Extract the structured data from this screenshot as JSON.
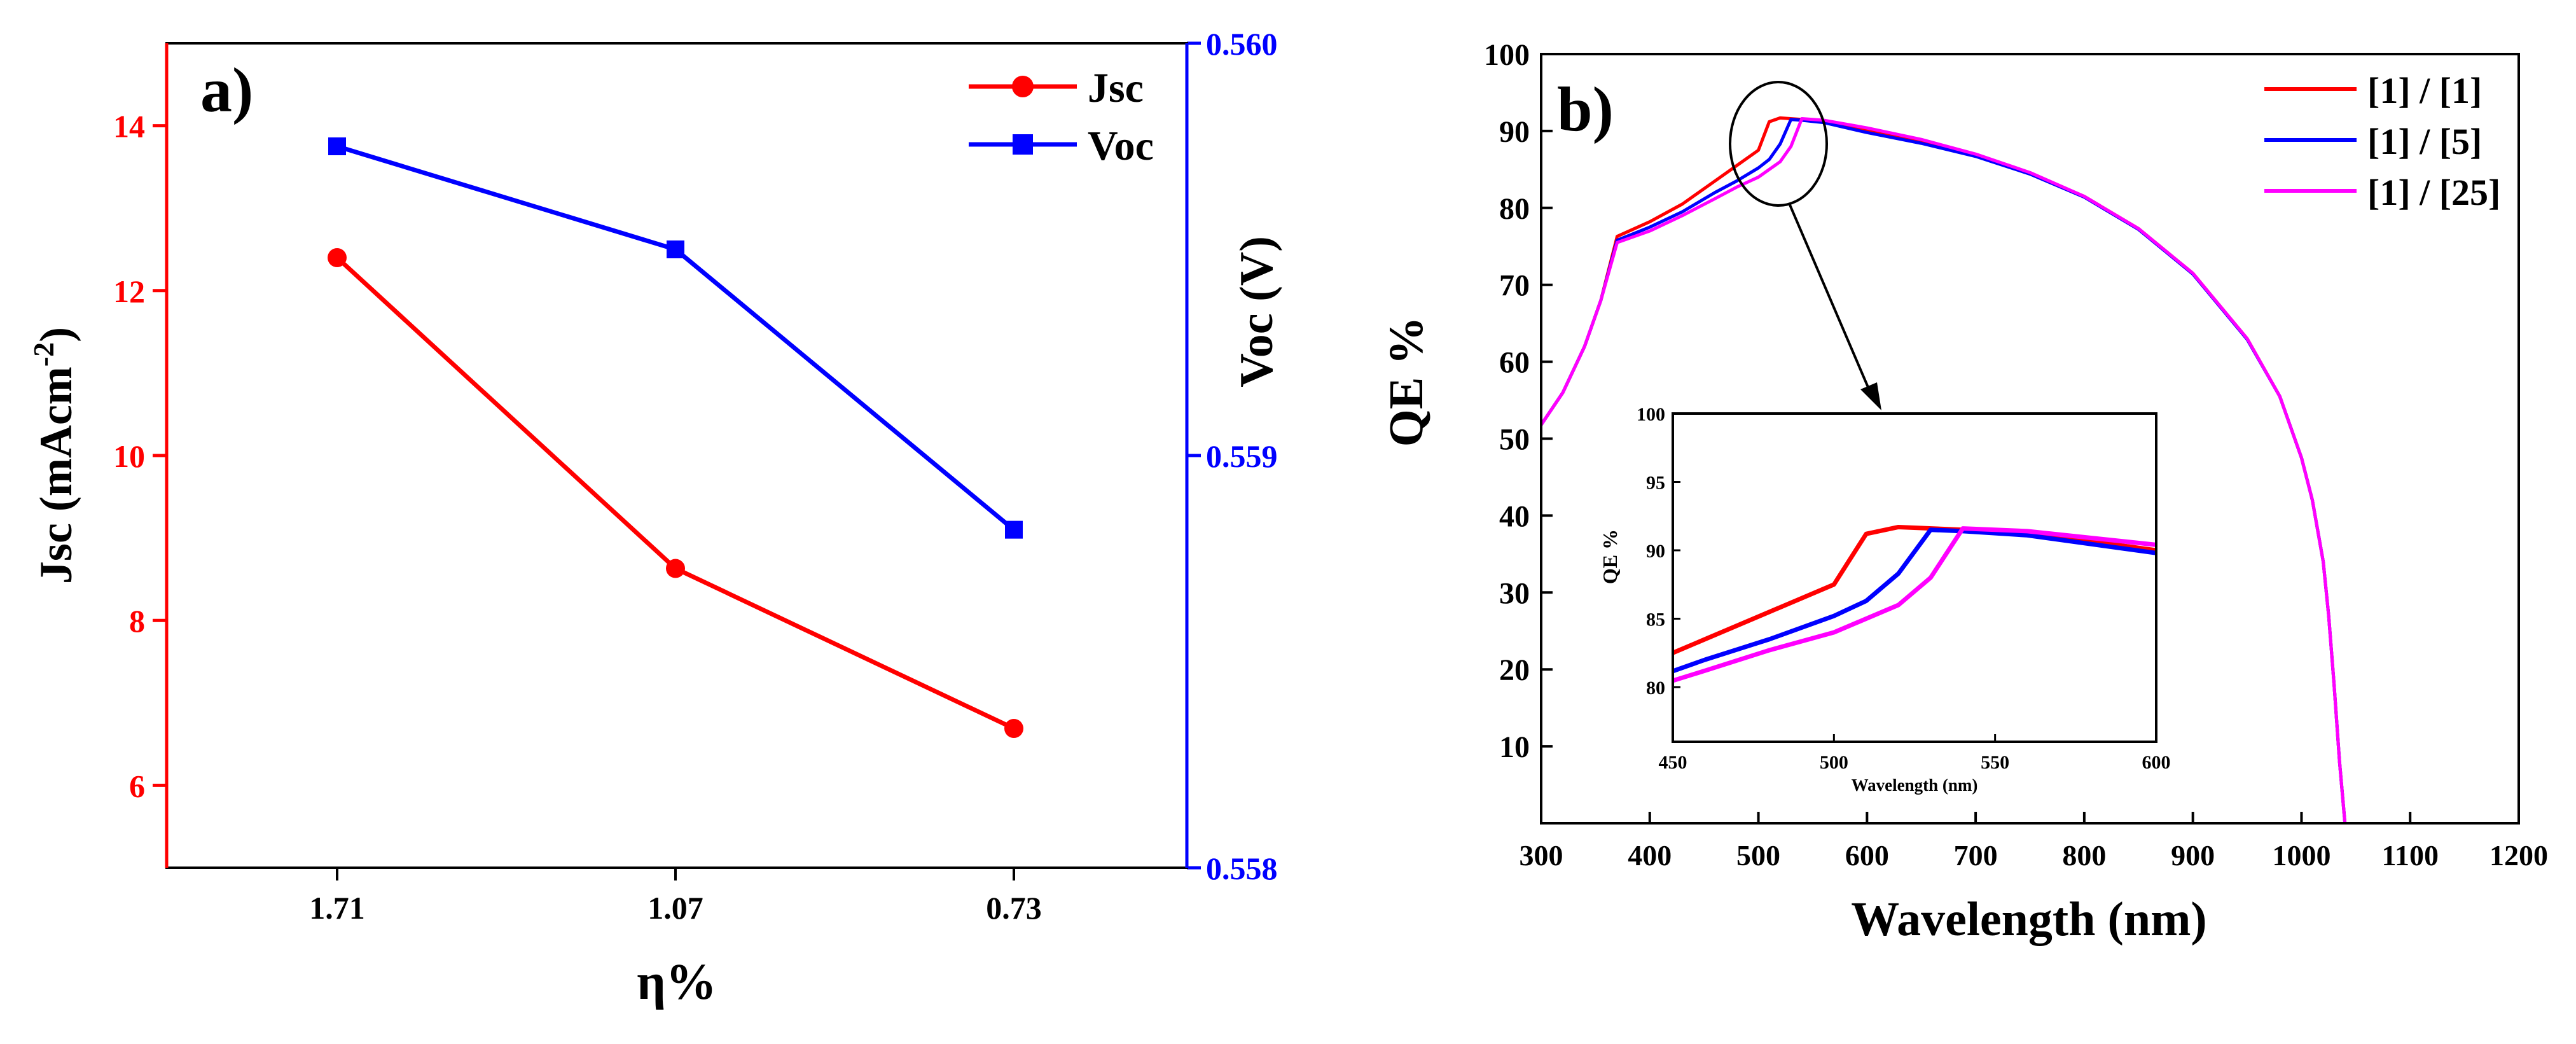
{
  "chart_data": [
    {
      "type": "line",
      "panel_label": "a)",
      "xlabel": "η%",
      "ylabel": "Jsc (mAcm",
      "ylabel_sup": "-2",
      "ylabel_end": ")",
      "y2label": "Voc (V)",
      "categories": [
        "1.71",
        "1.07",
        "0.73"
      ],
      "ylim": [
        5,
        15
      ],
      "yticks": [
        6,
        8,
        10,
        12,
        14
      ],
      "y2lim": [
        0.558,
        0.56
      ],
      "y2ticks": [
        "0.558",
        "0.559",
        "0.560"
      ],
      "legend_position": "top-right",
      "series": [
        {
          "name": "Jsc",
          "axis": "left",
          "color": "#ff0000",
          "marker": "circle",
          "values": [
            12.4,
            8.63,
            6.69
          ]
        },
        {
          "name": "Voc",
          "axis": "right",
          "color": "#0000ff",
          "marker": "square",
          "values": [
            0.55975,
            0.5595,
            0.55882
          ]
        }
      ]
    },
    {
      "type": "line",
      "panel_label": "b)",
      "xlabel": "Wavelength (nm)",
      "ylabel": "QE %",
      "xlim": [
        300,
        1200
      ],
      "xticks": [
        300,
        400,
        500,
        600,
        700,
        800,
        900,
        1000,
        1100,
        1200
      ],
      "ylim": [
        0,
        100
      ],
      "yticks": [
        10,
        20,
        30,
        40,
        50,
        60,
        70,
        80,
        90,
        100
      ],
      "legend_position": "top-right",
      "annotation": "circle around peak near 520 nm with arrow pointing to inset",
      "series": [
        {
          "name": "[1] / [1]",
          "color": "#ff0000",
          "x": [
            300,
            320,
            340,
            355,
            370,
            400,
            430,
            460,
            480,
            500,
            510,
            520,
            540,
            560,
            600,
            650,
            700,
            750,
            800,
            850,
            900,
            950,
            980,
            1000,
            1010,
            1020,
            1025,
            1030,
            1035,
            1040
          ],
          "y": [
            51.8,
            56,
            62,
            68,
            76.3,
            78.2,
            80.5,
            83.5,
            85.5,
            87.5,
            91.2,
            91.7,
            91.5,
            91.3,
            90,
            88.5,
            86.8,
            84.5,
            81.5,
            77.3,
            71.5,
            63,
            55.5,
            47.5,
            42,
            34,
            27,
            18,
            8,
            0
          ]
        },
        {
          "name": "[1] / [5]",
          "color": "#0000ff",
          "x": [
            300,
            320,
            340,
            355,
            370,
            400,
            430,
            460,
            480,
            500,
            510,
            520,
            530,
            540,
            560,
            600,
            650,
            700,
            750,
            800,
            850,
            900,
            950,
            980,
            1000,
            1010,
            1020,
            1025,
            1030,
            1035,
            1040
          ],
          "y": [
            51.8,
            56,
            62,
            68,
            75.8,
            77.5,
            79.5,
            82,
            83.5,
            85.2,
            86.3,
            88.3,
            91.5,
            91.4,
            91.1,
            89.8,
            88.4,
            86.7,
            84.4,
            81.4,
            77.2,
            71.4,
            62.9,
            55.5,
            47.5,
            42,
            34,
            27,
            18,
            8,
            0
          ]
        },
        {
          "name": "[1] / [25]",
          "color": "#ff00ff",
          "x": [
            300,
            320,
            340,
            355,
            370,
            400,
            430,
            460,
            480,
            500,
            510,
            520,
            530,
            540,
            560,
            600,
            650,
            700,
            750,
            800,
            850,
            900,
            950,
            980,
            1000,
            1010,
            1020,
            1025,
            1030,
            1035,
            1040
          ],
          "y": [
            51.8,
            56,
            62,
            68,
            75.5,
            77,
            79,
            81.2,
            82.7,
            84,
            85,
            86,
            88,
            91.6,
            91.4,
            90.4,
            88.9,
            87,
            84.6,
            81.5,
            77.3,
            71.5,
            63,
            55.5,
            47.5,
            42,
            34,
            27,
            18,
            8,
            0
          ]
        }
      ],
      "inset": {
        "xlabel": "Wavelength (nm)",
        "ylabel": "QE %",
        "xlim": [
          450,
          600
        ],
        "xticks": [
          450,
          500,
          550,
          600
        ],
        "ylim": [
          76,
          100
        ],
        "yticks": [
          80,
          85,
          90,
          95,
          100
        ]
      }
    }
  ]
}
